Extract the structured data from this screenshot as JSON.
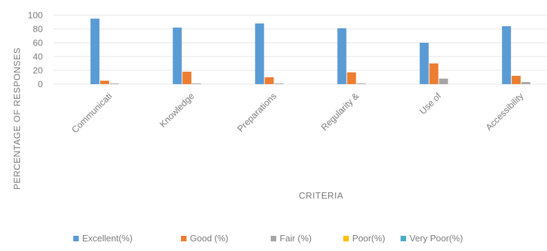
{
  "chart_data": {
    "type": "bar",
    "xlabel": "CRITERIA",
    "ylabel": "PERCENTAGE OF RESPONSES",
    "ylim": [
      0,
      100
    ],
    "yticks": [
      0,
      20,
      40,
      60,
      80,
      100
    ],
    "grid": true,
    "legend_position": "bottom",
    "categories": [
      "Communicati",
      "Knowledge",
      "Preparations",
      "Regularity &",
      "Use of",
      "Accessibility"
    ],
    "series": [
      {
        "name": "Excellent(%)",
        "color": "#5b9bd5",
        "values": [
          95,
          82,
          88,
          81,
          60,
          84
        ]
      },
      {
        "name": "Good (%)",
        "color": "#ed7d31",
        "values": [
          5,
          18,
          10,
          17,
          30,
          12
        ]
      },
      {
        "name": "Fair (%)",
        "color": "#a5a5a5",
        "values": [
          1,
          1,
          1,
          1,
          8,
          3
        ]
      },
      {
        "name": "Poor(%)",
        "color": "#ffc000",
        "values": [
          0,
          0,
          0,
          0,
          0,
          0
        ]
      },
      {
        "name": "Very Poor(%)",
        "color": "#4bacc6",
        "values": [
          0,
          0,
          0,
          0,
          0,
          0
        ]
      }
    ]
  }
}
